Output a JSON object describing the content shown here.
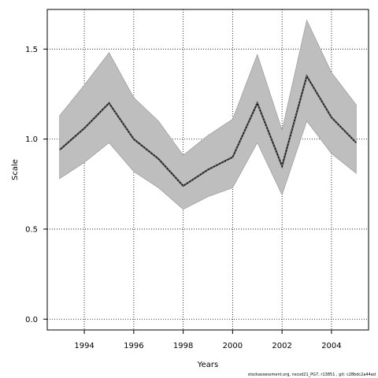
{
  "chart_data": {
    "type": "line",
    "xlabel": "Years",
    "ylabel": "Scale",
    "xlim": [
      1992.5,
      2005.5
    ],
    "ylim": [
      -0.06,
      1.72
    ],
    "x_ticks": [
      1994,
      1996,
      1998,
      2000,
      2002,
      2004
    ],
    "y_ticks": [
      0.0,
      0.5,
      1.0,
      1.5
    ],
    "y_tick_labels": [
      "0.0",
      "0.5",
      "1.0",
      "1.5"
    ],
    "grid": true,
    "x": [
      1993,
      1994,
      1995,
      1996,
      1997,
      1998,
      1999,
      2000,
      2001,
      2002,
      2003,
      2004,
      2005
    ],
    "series": [
      {
        "role": "estimate",
        "values": [
          0.94,
          1.06,
          1.2,
          1.0,
          0.89,
          0.74,
          0.83,
          0.9,
          1.2,
          0.85,
          1.35,
          1.12,
          0.98
        ]
      },
      {
        "role": "lower",
        "values": [
          0.78,
          0.87,
          0.98,
          0.82,
          0.73,
          0.61,
          0.68,
          0.73,
          0.98,
          0.69,
          1.1,
          0.92,
          0.81
        ]
      },
      {
        "role": "upper",
        "values": [
          1.13,
          1.3,
          1.48,
          1.23,
          1.1,
          0.91,
          1.02,
          1.11,
          1.47,
          1.05,
          1.66,
          1.37,
          1.19
        ]
      }
    ],
    "colors": {
      "band": "#bebebe",
      "band_edge": "#a0a0a0",
      "line": "#1a1a1a",
      "grid": "#000000"
    }
  },
  "footer": "stockassessment.org, nscod21_PG7, r13851 , git: c28bdc2a44ad"
}
